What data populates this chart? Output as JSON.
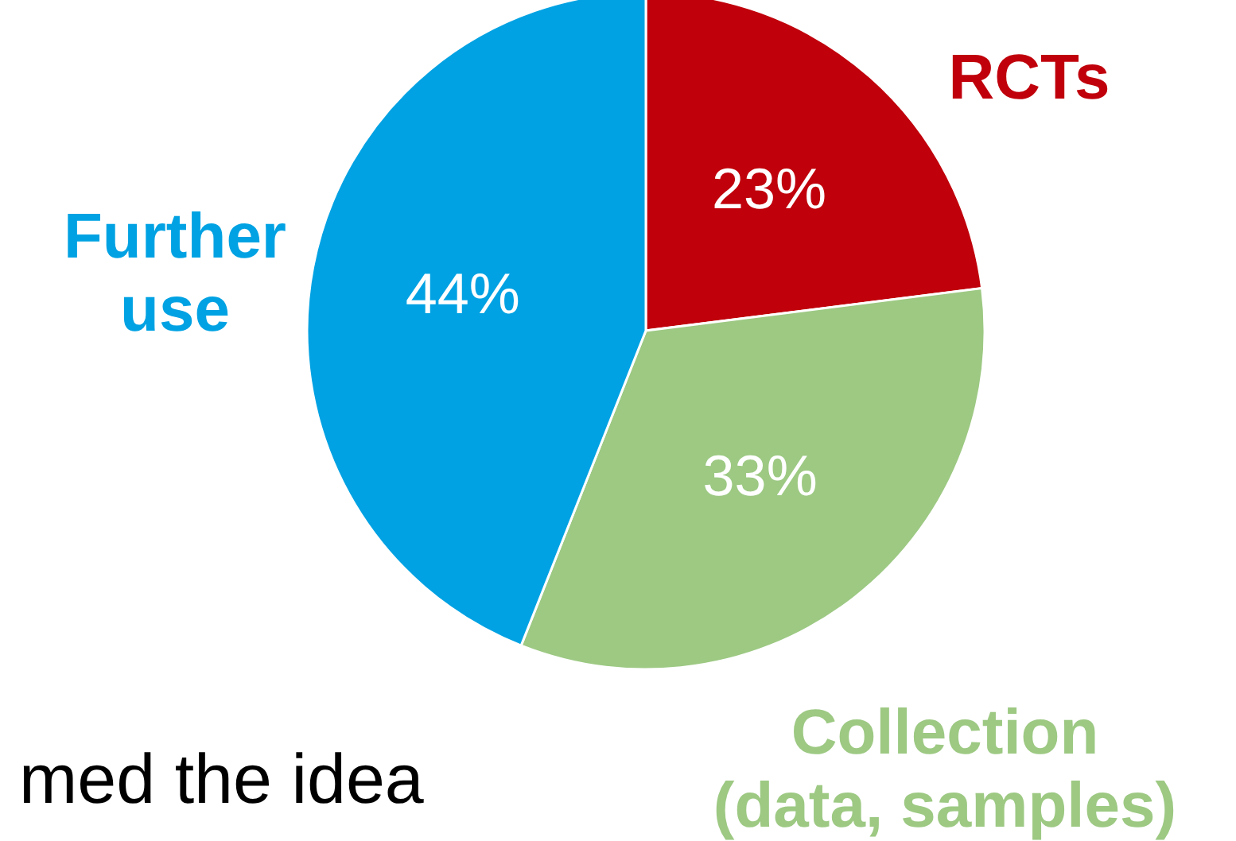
{
  "chart_data": {
    "type": "pie",
    "categories": [
      "RCTs",
      "Collection (data, samples)",
      "Further use"
    ],
    "values": [
      23,
      33,
      44
    ],
    "value_labels": [
      "23%",
      "33%",
      "44%"
    ],
    "colors": [
      "#c0000b",
      "#9dc983",
      "#00a2e3"
    ],
    "annotations": [
      "med the idea"
    ]
  }
}
